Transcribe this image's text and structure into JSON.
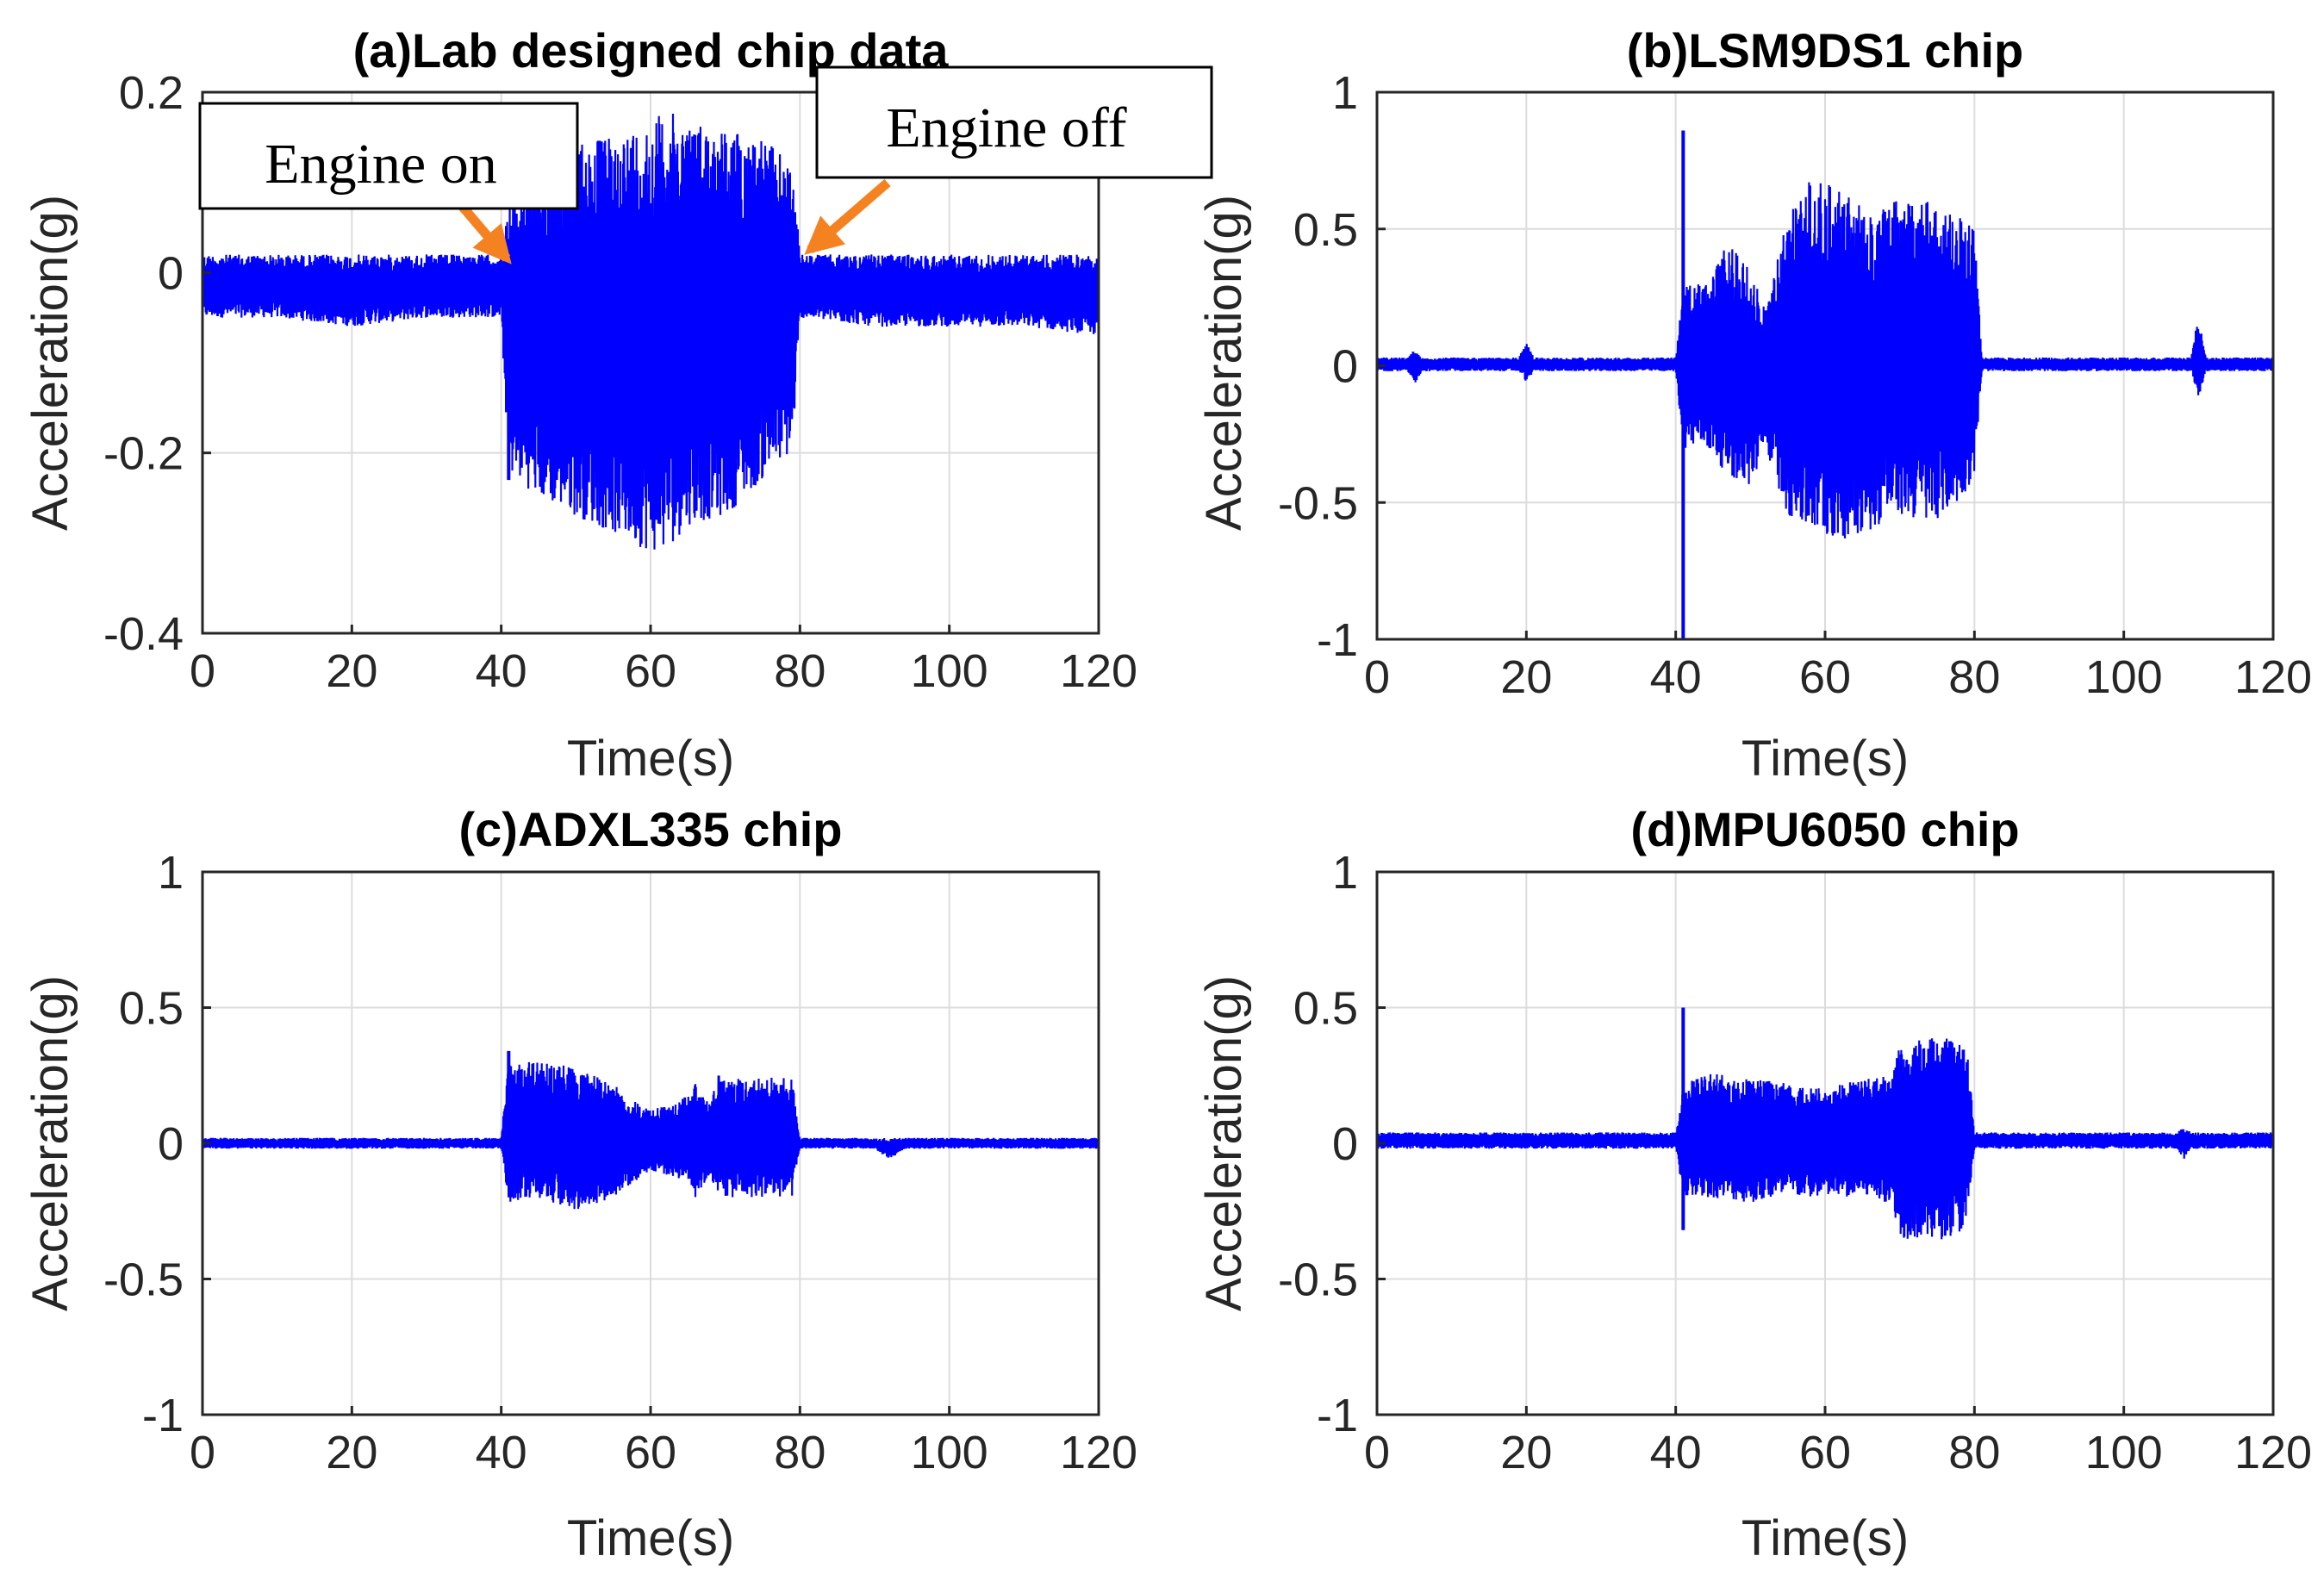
{
  "colors": {
    "signal": "#0000ff",
    "grid": "#dcdcdc",
    "axis": "#262626",
    "arrow": "#f58220"
  },
  "chart_data": [
    {
      "type": "line",
      "title": "(a)Lab designed chip data",
      "xlabel": "Time(s)",
      "ylabel": "Acceleration(g)",
      "xlim": [
        0,
        120
      ],
      "ylim": [
        -0.4,
        0.2
      ],
      "xticks": [
        0,
        20,
        40,
        60,
        80,
        100,
        120
      ],
      "yticks": [
        -0.4,
        -0.2,
        0,
        0.2
      ],
      "ytick_labels": [
        "-0.4",
        "-0.2",
        "0",
        "0.2"
      ],
      "grid": true,
      "series": [
        {
          "name": "Acceleration",
          "envelope": {
            "t": [
              0,
              10,
              20,
              30,
              40,
              41,
              45,
              50,
              55,
              60,
              62,
              65,
              70,
              75,
              79,
              80,
              90,
              100,
              110,
              120
            ],
            "upper": [
              0.02,
              0.02,
              0.02,
              0.02,
              0.02,
              0.08,
              0.12,
              0.15,
              0.15,
              0.17,
              0.18,
              0.17,
              0.16,
              0.15,
              0.12,
              0.02,
              0.02,
              0.02,
              0.02,
              0.02
            ],
            "lower": [
              -0.05,
              -0.05,
              -0.06,
              -0.05,
              -0.05,
              -0.22,
              -0.25,
              -0.27,
              -0.29,
              -0.31,
              -0.31,
              -0.28,
              -0.27,
              -0.23,
              -0.2,
              -0.05,
              -0.06,
              -0.06,
              -0.06,
              -0.07
            ]
          },
          "spikes": [
            {
              "t": 41,
              "v": -0.23
            }
          ]
        }
      ],
      "annotations": [
        {
          "text": "Engine on",
          "t": 41,
          "v": 0.01
        },
        {
          "text": "Engine off",
          "t": 80,
          "v": 0.01
        }
      ]
    },
    {
      "type": "line",
      "title": "(b)LSM9DS1 chip",
      "xlabel": "Time(s)",
      "ylabel": "Acceleration(g)",
      "xlim": [
        0,
        120
      ],
      "ylim": [
        -1,
        1
      ],
      "xticks": [
        0,
        20,
        40,
        60,
        80,
        100,
        120
      ],
      "yticks": [
        -1,
        -0.5,
        0,
        0.5,
        1
      ],
      "ytick_labels": [
        "-1",
        "-0.5",
        "0",
        "0.5",
        "1"
      ],
      "grid": true,
      "series": [
        {
          "name": "Acceleration",
          "envelope": {
            "t": [
              0,
              4,
              5,
              6,
              19,
              20,
              21,
              40,
              41,
              44,
              47,
              50,
              52,
              55,
              58,
              62,
              66,
              70,
              74,
              78,
              80,
              81,
              90,
              100,
              109,
              110,
              111,
              120
            ],
            "upper": [
              0.03,
              0.03,
              0.06,
              0.03,
              0.03,
              0.09,
              0.03,
              0.03,
              0.3,
              0.3,
              0.45,
              0.35,
              0.2,
              0.55,
              0.68,
              0.65,
              0.55,
              0.62,
              0.6,
              0.55,
              0.5,
              0.03,
              0.03,
              0.03,
              0.03,
              0.2,
              0.03,
              0.03
            ],
            "lower": [
              -0.02,
              -0.02,
              -0.07,
              -0.02,
              -0.02,
              -0.06,
              -0.02,
              -0.02,
              -0.3,
              -0.3,
              -0.4,
              -0.45,
              -0.3,
              -0.55,
              -0.62,
              -0.64,
              -0.6,
              -0.55,
              -0.58,
              -0.5,
              -0.4,
              -0.02,
              -0.02,
              -0.02,
              -0.02,
              -0.12,
              -0.02,
              -0.02
            ]
          },
          "spikes": [
            {
              "t": 41,
              "v": 0.86
            },
            {
              "t": 41,
              "v": -1
            }
          ]
        }
      ]
    },
    {
      "type": "line",
      "title": "(c)ADXL335 chip",
      "xlabel": "Time(s)",
      "ylabel": "Acceleration(g)",
      "xlim": [
        0,
        120
      ],
      "ylim": [
        -1,
        1
      ],
      "xticks": [
        0,
        20,
        40,
        60,
        80,
        100,
        120
      ],
      "yticks": [
        -1,
        -0.5,
        0,
        0.5,
        1
      ],
      "ytick_labels": [
        "-1",
        "-0.5",
        "0",
        "0.5",
        "1"
      ],
      "grid": true,
      "series": [
        {
          "name": "Acceleration",
          "envelope": {
            "t": [
              0,
              20,
              40,
              41,
              45,
              50,
              55,
              60,
              65,
              66,
              68,
              69,
              79,
              80,
              90,
              92,
              94,
              100,
              120
            ],
            "upper": [
              0.02,
              0.02,
              0.02,
              0.3,
              0.3,
              0.28,
              0.22,
              0.12,
              0.18,
              0.22,
              0.15,
              0.25,
              0.24,
              0.02,
              0.02,
              0.02,
              0.02,
              0.02,
              0.02
            ],
            "lower": [
              -0.02,
              -0.02,
              -0.02,
              -0.22,
              -0.2,
              -0.25,
              -0.2,
              -0.1,
              -0.14,
              -0.2,
              -0.12,
              -0.2,
              -0.2,
              -0.02,
              -0.02,
              -0.06,
              -0.02,
              -0.02,
              -0.02
            ]
          },
          "spikes": [
            {
              "t": 41,
              "v": 0.34
            }
          ]
        }
      ]
    },
    {
      "type": "line",
      "title": "(d)MPU6050 chip",
      "xlabel": "Time(s)",
      "ylabel": "Acceleration(g)",
      "xlim": [
        0,
        120
      ],
      "ylim": [
        -1,
        1
      ],
      "xticks": [
        0,
        20,
        40,
        60,
        80,
        100,
        120
      ],
      "yticks": [
        -1,
        -0.5,
        0,
        0.5,
        1
      ],
      "ytick_labels": [
        "-1",
        "-0.5",
        "0",
        "0.5",
        "1"
      ],
      "grid": true,
      "series": [
        {
          "name": "Acceleration",
          "envelope": {
            "t": [
              0,
              20,
              40,
              41,
              45,
              50,
              55,
              60,
              65,
              69,
              70,
              75,
              79,
              80,
              100,
              107,
              108,
              109,
              120
            ],
            "upper": [
              0.04,
              0.04,
              0.04,
              0.22,
              0.26,
              0.24,
              0.22,
              0.2,
              0.24,
              0.25,
              0.38,
              0.4,
              0.36,
              0.04,
              0.04,
              0.04,
              0.06,
              0.04,
              0.04
            ],
            "lower": [
              -0.02,
              -0.02,
              -0.02,
              -0.2,
              -0.2,
              -0.22,
              -0.2,
              -0.2,
              -0.2,
              -0.22,
              -0.35,
              -0.36,
              -0.32,
              -0.02,
              -0.02,
              -0.02,
              -0.06,
              -0.02,
              -0.02
            ]
          },
          "spikes": [
            {
              "t": 41,
              "v": 0.5
            },
            {
              "t": 41,
              "v": -0.32
            }
          ]
        }
      ]
    }
  ]
}
